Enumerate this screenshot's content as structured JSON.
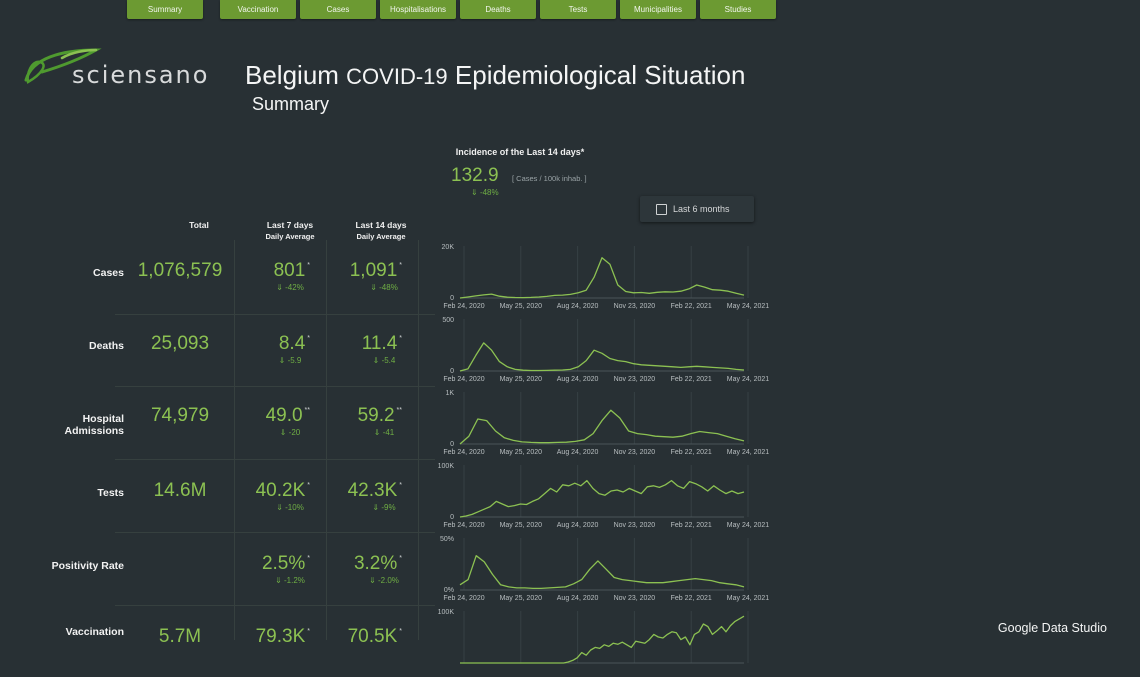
{
  "nav": {
    "tabs": [
      "Summary",
      "Vaccination",
      "Cases",
      "Hospitalisations",
      "Deaths",
      "Tests",
      "Municipalities",
      "Studies"
    ]
  },
  "logo": {
    "text": "sciensano"
  },
  "header": {
    "title_part1": "Belgium",
    "title_part2": "COVID-19",
    "title_part3": "Epidemiological Situation",
    "subtitle": "Summary"
  },
  "incidence": {
    "title": "Incidence of the Last 14 days*",
    "value": "132.9",
    "unit": "[ Cases / 100k inhab. ]",
    "delta": "-48%"
  },
  "toggle": {
    "label": "Last 6 months",
    "checked": false
  },
  "columns": {
    "total": "Total",
    "last7": "Last 7 days",
    "last7_sub": "Daily Average",
    "last14": "Last 14 days",
    "last14_sub": "Daily Average"
  },
  "rows": [
    {
      "label": "Cases",
      "total": "1,076,579",
      "d7": "801",
      "d7_mark": "*",
      "d7_delta": "-42%",
      "d14": "1,091",
      "d14_mark": "*",
      "d14_delta": "-48%"
    },
    {
      "label": "Deaths",
      "total": "25,093",
      "d7": "8.4",
      "d7_mark": "*",
      "d7_delta": "-5.9",
      "d14": "11.4",
      "d14_mark": "*",
      "d14_delta": "-5.4"
    },
    {
      "label": "Hospital Admissions",
      "total": "74,979",
      "d7": "49.0",
      "d7_mark": "**",
      "d7_delta": "-20",
      "d14": "59.2",
      "d14_mark": "**",
      "d14_delta": "-41"
    },
    {
      "label": "Tests",
      "total": "14.6M",
      "d7": "40.2K",
      "d7_mark": "*",
      "d7_delta": "-10%",
      "d14": "42.3K",
      "d14_mark": "*",
      "d14_delta": "-9%"
    },
    {
      "label": "Positivity Rate",
      "total": "",
      "d7": "2.5%",
      "d7_mark": "*",
      "d7_delta": "-1.2%",
      "d14": "3.2%",
      "d14_mark": "*",
      "d14_delta": "-2.0%"
    },
    {
      "label": "Vaccination",
      "total": "5.7M",
      "d7": "79.3K",
      "d7_mark": "*",
      "d7_delta": "",
      "d14": "70.5K",
      "d14_mark": "*",
      "d14_delta": ""
    }
  ],
  "chart_data": [
    {
      "type": "line",
      "series_name": "Cases",
      "ylim_label": "20K",
      "yzero": "0",
      "ymax": 20000,
      "xticks": [
        "Feb 24, 2020",
        "May 25, 2020",
        "Aug 24, 2020",
        "Nov 23, 2020",
        "Feb 22, 2021",
        "May 24, 2021"
      ],
      "values": [
        0,
        400,
        800,
        1200,
        1500,
        700,
        300,
        200,
        150,
        250,
        400,
        600,
        1000,
        1100,
        1400,
        2000,
        3000,
        8000,
        15500,
        13000,
        5000,
        2500,
        2000,
        2100,
        1800,
        2200,
        2400,
        2300,
        2600,
        3500,
        5000,
        4200,
        3200,
        3000,
        2600,
        1800,
        1100
      ]
    },
    {
      "type": "line",
      "series_name": "Deaths",
      "ylim_label": "500",
      "yzero": "0",
      "ymax": 500,
      "xticks": [
        "Feb 24, 2020",
        "May 25, 2020",
        "Aug 24, 2020",
        "Nov 23, 2020",
        "Feb 22, 2021",
        "May 24, 2021"
      ],
      "values": [
        0,
        20,
        150,
        270,
        200,
        90,
        40,
        15,
        8,
        5,
        5,
        6,
        8,
        10,
        15,
        40,
        100,
        200,
        170,
        120,
        100,
        90,
        70,
        60,
        55,
        50,
        45,
        40,
        35,
        40,
        45,
        40,
        35,
        30,
        25,
        15,
        10
      ]
    },
    {
      "type": "line",
      "series_name": "Hospital Admissions",
      "ylim_label": "1K",
      "yzero": "0",
      "ymax": 1000,
      "xticks": [
        "Feb 24, 2020",
        "May 25, 2020",
        "Aug 24, 2020",
        "Nov 23, 2020",
        "Feb 22, 2021",
        "May 24, 2021"
      ],
      "values": [
        0,
        150,
        480,
        450,
        250,
        120,
        70,
        40,
        30,
        25,
        25,
        30,
        35,
        50,
        80,
        200,
        450,
        650,
        500,
        250,
        200,
        180,
        150,
        140,
        130,
        150,
        200,
        240,
        220,
        200,
        150,
        100,
        60
      ]
    },
    {
      "type": "line",
      "series_name": "Tests",
      "ylim_label": "100K",
      "yzero": "0",
      "ymax": 100000,
      "xticks": [
        "Feb 24, 2020",
        "May 25, 2020",
        "Aug 24, 2020",
        "Nov 23, 2020",
        "Feb 22, 2021",
        "May 24, 2021"
      ],
      "values": [
        0,
        2000,
        5000,
        10000,
        15000,
        20000,
        30000,
        25000,
        20000,
        22000,
        25000,
        24000,
        30000,
        35000,
        45000,
        55000,
        48000,
        62000,
        60000,
        65000,
        60000,
        70000,
        55000,
        45000,
        42000,
        50000,
        52000,
        48000,
        55000,
        50000,
        45000,
        58000,
        60000,
        57000,
        62000,
        70000,
        60000,
        55000,
        68000,
        64000,
        58000,
        50000,
        60000,
        52000,
        45000,
        50000,
        45000,
        48000
      ]
    },
    {
      "type": "line",
      "series_name": "Positivity Rate",
      "ylim_label": "50%",
      "yzero": "0%",
      "ymax": 50,
      "xticks": [
        "Feb 24, 2020",
        "May 25, 2020",
        "Aug 24, 2020",
        "Nov 23, 2020",
        "Feb 22, 2021",
        "May 24, 2021"
      ],
      "values": [
        5,
        10,
        33,
        27,
        15,
        5,
        3,
        2,
        2,
        1.5,
        1.5,
        2,
        2.5,
        3,
        6,
        10,
        20,
        28,
        20,
        12,
        10,
        9,
        8,
        7,
        7,
        7,
        8,
        9,
        10,
        11,
        10,
        9,
        7,
        6,
        5,
        3
      ]
    },
    {
      "type": "line",
      "series_name": "Vaccination",
      "ylim_label": "100K",
      "yzero": "",
      "ymax": 100000,
      "xticks": [],
      "values": [
        0,
        0,
        0,
        0,
        0,
        0,
        0,
        0,
        0,
        0,
        0,
        0,
        0,
        0,
        0,
        0,
        0,
        0,
        0,
        0,
        0,
        0,
        0,
        0,
        2000,
        5000,
        10000,
        20000,
        15000,
        25000,
        30000,
        28000,
        35000,
        32000,
        38000,
        36000,
        40000,
        35000,
        30000,
        42000,
        40000,
        38000,
        45000,
        55000,
        50000,
        48000,
        55000,
        60000,
        58000,
        45000,
        50000,
        35000,
        55000,
        60000,
        75000,
        70000,
        55000,
        62000,
        70000,
        60000,
        72000,
        80000,
        85000,
        90000
      ]
    }
  ],
  "branding": {
    "gds": "Google Data Studio"
  },
  "colors": {
    "accent": "#8cc152",
    "tab_bg": "#6c9a32",
    "bg": "#283034"
  }
}
